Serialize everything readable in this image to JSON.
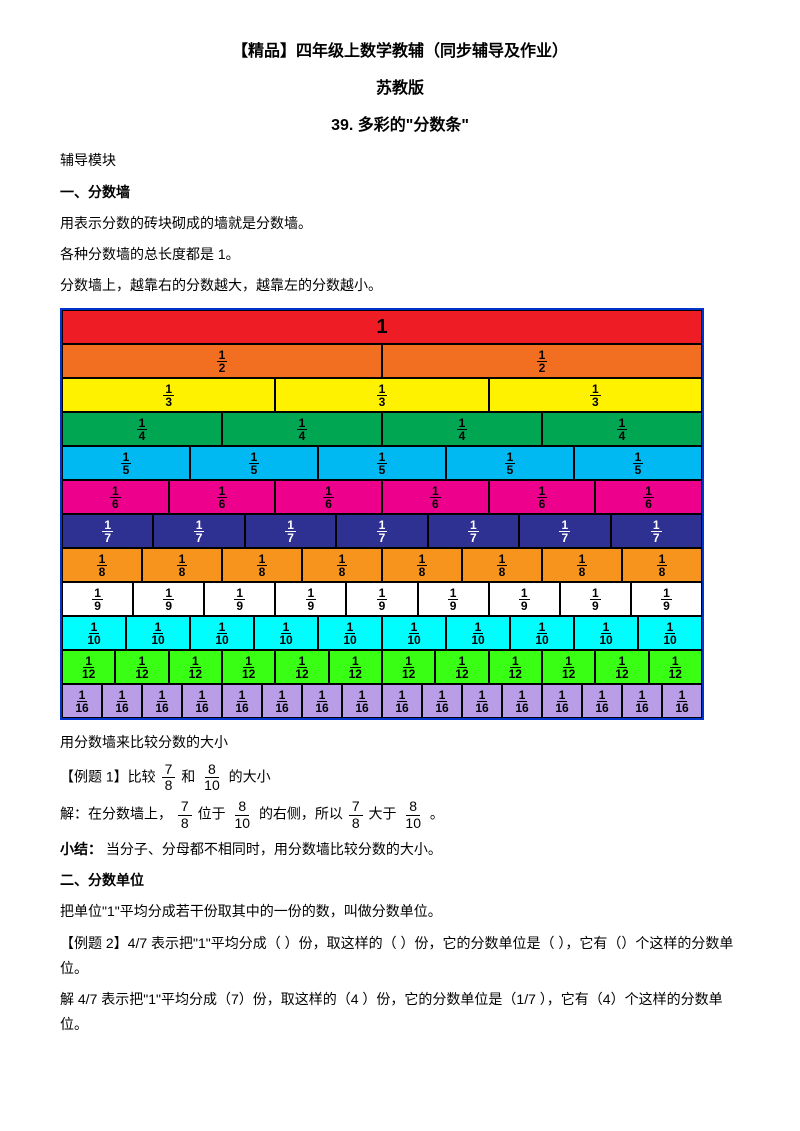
{
  "titles": {
    "main": "【精品】四年级上数学教辅（同步辅导及作业）",
    "publisher": "苏教版",
    "lesson": "39. 多彩的\"分数条\""
  },
  "intro": {
    "module": "辅导模块",
    "h1": "一、分数墙",
    "p1": "用表示分数的砖块砌成的墙就是分数墙。",
    "p2": "各种分数墙的总长度都是 1。",
    "p3": "分数墙上，越靠右的分数越大，越靠左的分数越小。"
  },
  "wall": {
    "rows": [
      {
        "parts": 1,
        "color": "#ee1c25",
        "label": "1"
      },
      {
        "parts": 2,
        "color": "#f26f22",
        "label": "1/2"
      },
      {
        "parts": 3,
        "color": "#fff200",
        "label": "1/3"
      },
      {
        "parts": 4,
        "color": "#00a651",
        "label": "1/4"
      },
      {
        "parts": 5,
        "color": "#00b9f2",
        "label": "1/5"
      },
      {
        "parts": 6,
        "color": "#ec008c",
        "label": "1/6"
      },
      {
        "parts": 7,
        "color": "#2e3192",
        "label": "1/7",
        "textColor": "#ffffff"
      },
      {
        "parts": 8,
        "color": "#f7941d",
        "label": "1/8"
      },
      {
        "parts": 9,
        "color": "#ffffff",
        "label": "1/9"
      },
      {
        "parts": 10,
        "color": "#00feff",
        "label": "1/10"
      },
      {
        "parts": 12,
        "color": "#39ff14",
        "label": "1/12"
      },
      {
        "parts": 16,
        "color": "#b99de6",
        "label": "1/16"
      }
    ]
  },
  "after_wall": {
    "p1": "用分数墙来比较分数的大小",
    "ex1_label": "【例题 1】比较",
    "ex1_and": " 和",
    "ex1_tail": "的大小",
    "sol1_a": "解：在分数墙上，",
    "sol1_b": "位于",
    "sol1_c": "的右侧，所以",
    "sol1_d": "大于",
    "sol1_e": "。",
    "summary_label": "小结：",
    "summary": "当分子、分母都不相同时，用分数墙比较分数的大小。",
    "h2": "二、分数单位",
    "p2": "把单位\"1\"平均分成若干份取其中的一份的数，叫做分数单位。",
    "ex2": "【例题 2】4/7 表示把\"1\"平均分成（ ）份，取这样的（ ）份，它的分数单位是（ ），它有（）个这样的分数单位。",
    "sol2": "解 4/7 表示把\"1\"平均分成（7）份，取这样的（4 ）份，它的分数单位是（1/7 ），它有（4）个这样的分数单位。"
  },
  "fractions": {
    "f7_8_n": "7",
    "f7_8_d": "8",
    "f8_10_n": "8",
    "f8_10_d": "10"
  }
}
